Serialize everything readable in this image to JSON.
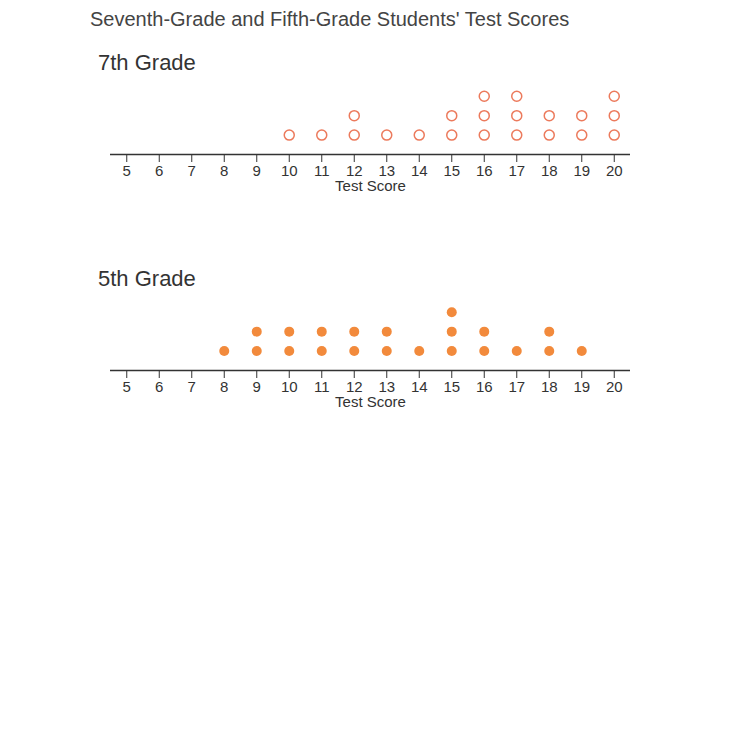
{
  "title": "Seventh-Grade and Fifth-Grade Students' Test Scores",
  "chart_data": [
    {
      "type": "dot",
      "title": "7th Grade",
      "xlabel": "Test Score",
      "x": [
        10,
        11,
        12,
        13,
        14,
        15,
        16,
        17,
        18,
        19,
        20
      ],
      "values": [
        1,
        1,
        2,
        1,
        1,
        2,
        3,
        3,
        2,
        2,
        3
      ],
      "color": "#ec7a5c",
      "marker": "open",
      "xlim": [
        4.5,
        20.5
      ],
      "xticks": [
        5,
        6,
        7,
        8,
        9,
        10,
        11,
        12,
        13,
        14,
        15,
        16,
        17,
        18,
        19,
        20
      ]
    },
    {
      "type": "dot",
      "title": "5th Grade",
      "xlabel": "Test Score",
      "x": [
        8,
        9,
        10,
        11,
        12,
        13,
        14,
        15,
        16,
        17,
        18,
        19
      ],
      "values": [
        1,
        2,
        2,
        2,
        2,
        2,
        1,
        3,
        2,
        1,
        2,
        1
      ],
      "color": "#f28a3c",
      "marker": "filled",
      "xlim": [
        4.5,
        20.5
      ],
      "xticks": [
        5,
        6,
        7,
        8,
        9,
        10,
        11,
        12,
        13,
        14,
        15,
        16,
        17,
        18,
        19,
        20
      ]
    }
  ]
}
